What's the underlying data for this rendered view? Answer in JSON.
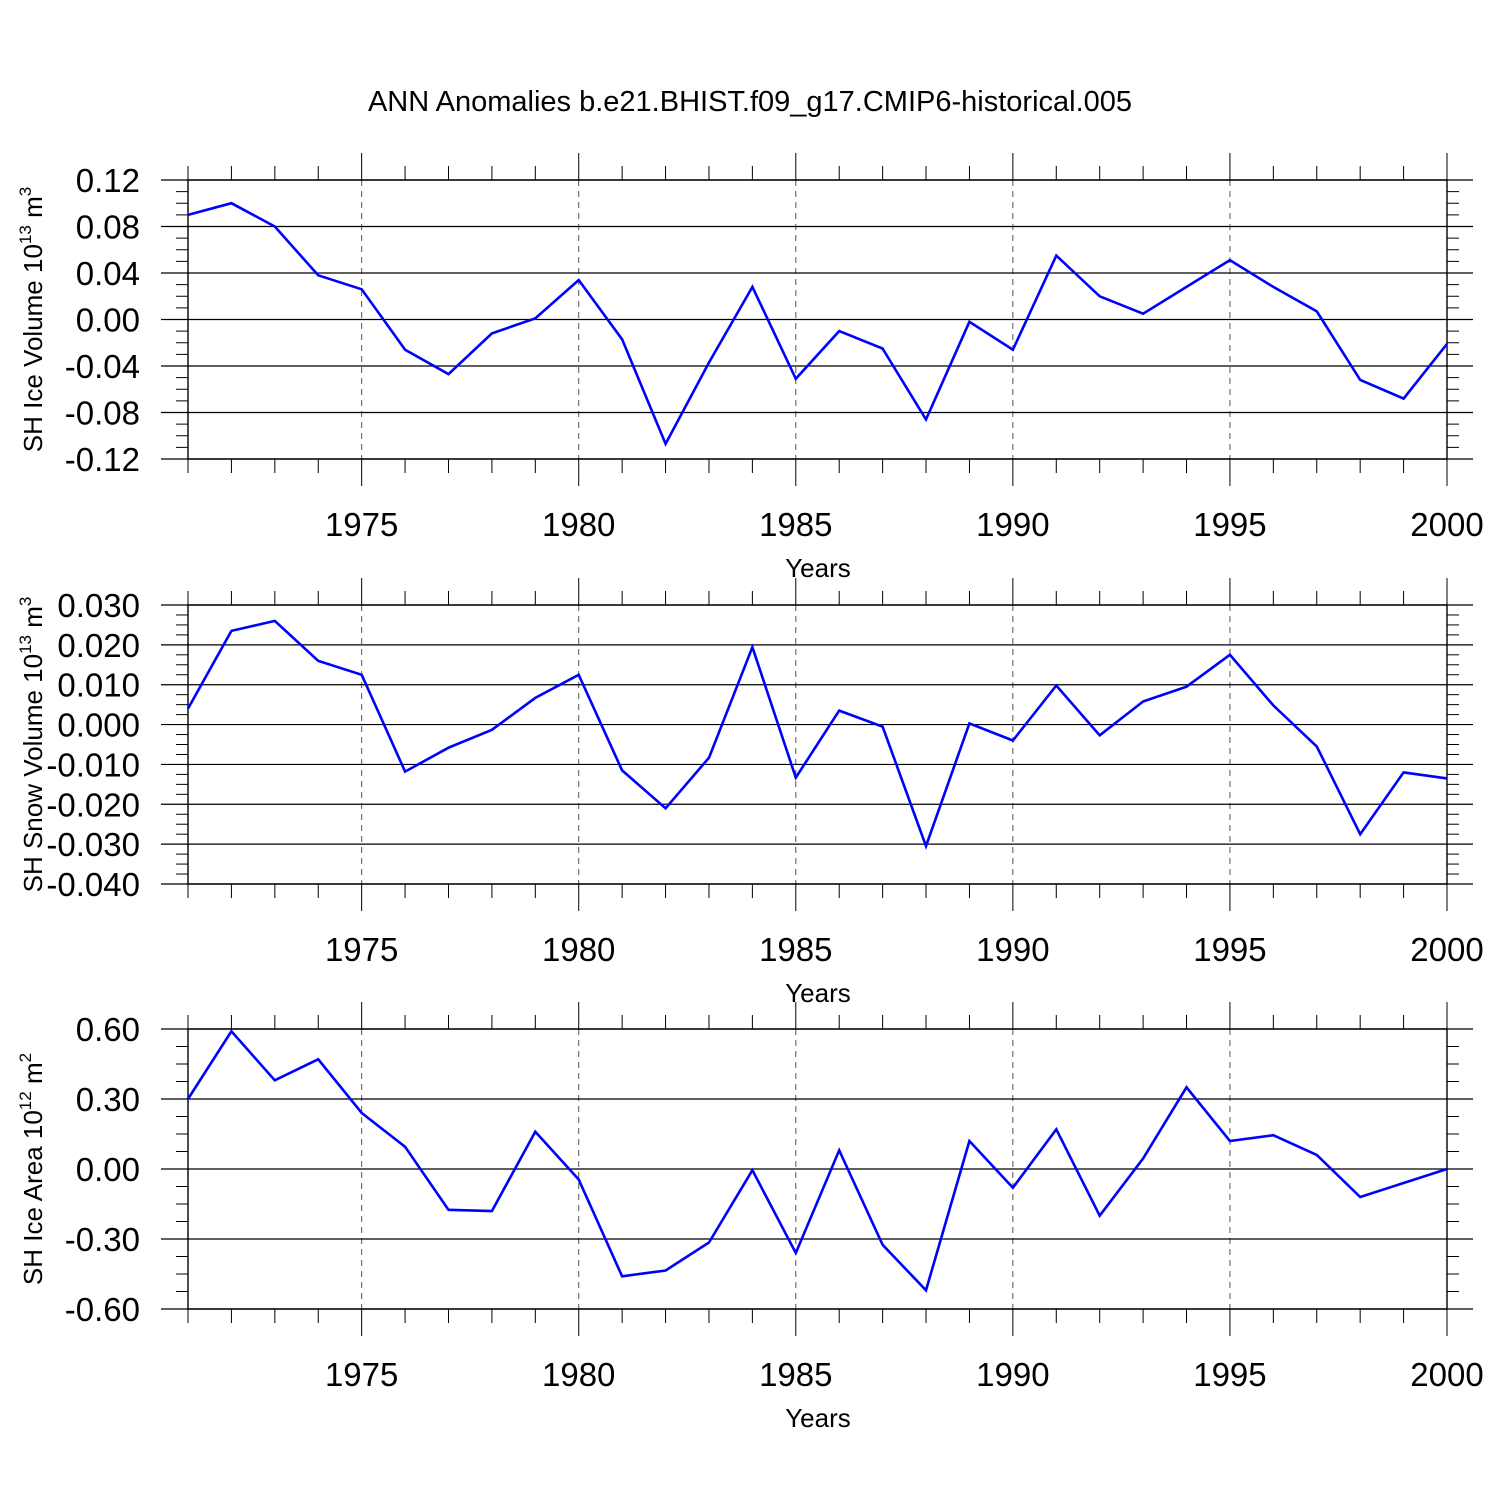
{
  "title": "ANN Anomalies b.e21.BHIST.f09_g17.CMIP6-historical.005",
  "line_color": "#0000ff",
  "chart_data": [
    {
      "type": "line",
      "ylabel": {
        "text": "SH Ice Volume 10",
        "exp": "13",
        "unit": " m",
        "unit_exp": "3"
      },
      "xlabel": "Years",
      "xlim": [
        1971,
        2000
      ],
      "ylim": [
        -0.12,
        0.12
      ],
      "x_ticks": [
        1975,
        1980,
        1985,
        1990,
        1995,
        2000
      ],
      "y_ticks": [
        "0.12",
        "0.08",
        "0.04",
        "0.00",
        "-0.04",
        "-0.08",
        "-0.12"
      ],
      "grid_x": "dashed at major ticks",
      "x": [
        1971,
        1972,
        1973,
        1974,
        1975,
        1976,
        1977,
        1978,
        1979,
        1980,
        1981,
        1982,
        1983,
        1984,
        1985,
        1986,
        1987,
        1988,
        1989,
        1990,
        1991,
        1992,
        1993,
        1994,
        1995,
        1996,
        1997,
        1998,
        1999,
        2000
      ],
      "series": [
        {
          "values": [
            0.09,
            0.1,
            0.08,
            0.038,
            0.026,
            -0.026,
            -0.047,
            -0.012,
            0.001,
            0.034,
            -0.017,
            -0.107,
            -0.037,
            0.028,
            -0.051,
            -0.01,
            -0.025,
            -0.086,
            -0.002,
            -0.026,
            0.055,
            0.02,
            0.005,
            0.028,
            0.051,
            0.028,
            0.007,
            -0.052,
            -0.068,
            -0.021
          ]
        }
      ]
    },
    {
      "type": "line",
      "ylabel": {
        "text": "SH Snow Volume 10",
        "exp": "13",
        "unit": " m",
        "unit_exp": "3"
      },
      "xlabel": "Years",
      "xlim": [
        1971,
        2000
      ],
      "ylim": [
        -0.04,
        0.03
      ],
      "x_ticks": [
        1975,
        1980,
        1985,
        1990,
        1995,
        2000
      ],
      "y_ticks": [
        "0.030",
        "0.020",
        "0.010",
        "0.000",
        "-0.010",
        "-0.020",
        "-0.030",
        "-0.040"
      ],
      "grid_x": "dashed at major ticks",
      "x": [
        1971,
        1972,
        1973,
        1974,
        1975,
        1976,
        1977,
        1978,
        1979,
        1980,
        1981,
        1982,
        1983,
        1984,
        1985,
        1986,
        1987,
        1988,
        1989,
        1990,
        1991,
        1992,
        1993,
        1994,
        1995,
        1996,
        1997,
        1998,
        1999,
        2000
      ],
      "series": [
        {
          "values": [
            0.004,
            0.0235,
            0.026,
            0.016,
            0.0125,
            -0.0118,
            -0.0058,
            -0.0013,
            0.0067,
            0.0125,
            -0.0115,
            -0.021,
            -0.0083,
            0.0194,
            -0.0133,
            0.0035,
            -0.0005,
            -0.0305,
            0.0003,
            -0.004,
            0.0098,
            -0.0027,
            0.0058,
            0.0095,
            0.0175,
            0.0048,
            -0.0055,
            -0.0275,
            -0.012,
            -0.0135
          ]
        }
      ]
    },
    {
      "type": "line",
      "ylabel": {
        "text": "SH Ice Area 10",
        "exp": "12",
        "unit": " m",
        "unit_exp": "2"
      },
      "xlabel": "Years",
      "xlim": [
        1971,
        2000
      ],
      "ylim": [
        -0.6,
        0.6
      ],
      "x_ticks": [
        1975,
        1980,
        1985,
        1990,
        1995,
        2000
      ],
      "y_ticks": [
        "0.60",
        "0.30",
        "0.00",
        "-0.30",
        "-0.60"
      ],
      "grid_x": "dashed at major ticks",
      "x": [
        1971,
        1972,
        1973,
        1974,
        1975,
        1976,
        1977,
        1978,
        1979,
        1980,
        1981,
        1982,
        1983,
        1984,
        1985,
        1986,
        1987,
        1988,
        1989,
        1990,
        1991,
        1992,
        1993,
        1994,
        1995,
        1996,
        1997,
        1998,
        1999,
        2000
      ],
      "series": [
        {
          "values": [
            0.3,
            0.59,
            0.38,
            0.47,
            0.24,
            0.095,
            -0.175,
            -0.18,
            0.16,
            -0.045,
            -0.46,
            -0.435,
            -0.315,
            -0.005,
            -0.36,
            0.08,
            -0.325,
            -0.52,
            0.12,
            -0.08,
            0.17,
            -0.2,
            0.045,
            0.35,
            0.12,
            0.145,
            0.06,
            -0.12,
            -0.06,
            0.0
          ]
        }
      ]
    }
  ]
}
